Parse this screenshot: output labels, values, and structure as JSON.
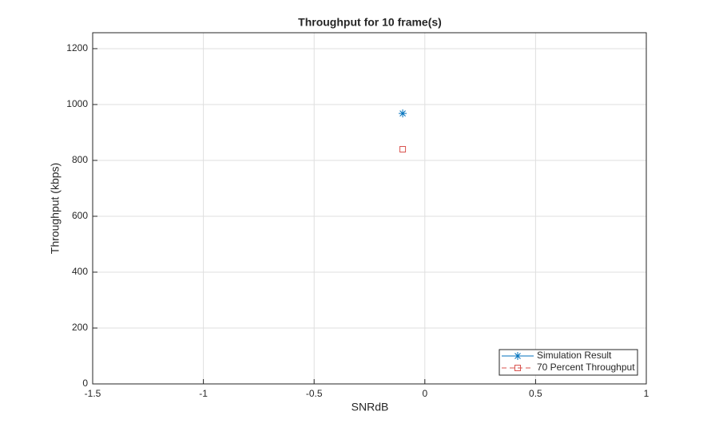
{
  "chart_data": {
    "type": "line",
    "title": "Throughput for 10 frame(s)",
    "xlabel": "SNRdB",
    "ylabel": "Throughput (kbps)",
    "x": [
      -0.1
    ],
    "series": [
      {
        "name": "Simulation Result",
        "color": "#0072bd",
        "marker": "*",
        "linestyle": "solid",
        "values": [
          968
        ]
      },
      {
        "name": "70 Percent Throughput",
        "color": "#d9534f",
        "marker": "s",
        "linestyle": "dashed",
        "values": [
          840
        ]
      }
    ],
    "xlim": [
      -1.5,
      1
    ],
    "xticks": [
      -1.5,
      -1,
      -0.5,
      0,
      0.5,
      1
    ],
    "ylim": [
      0,
      1257
    ],
    "yticks": [
      0,
      200,
      400,
      600,
      800,
      1000,
      1200
    ],
    "grid": true,
    "legend_loc": "lower right"
  }
}
